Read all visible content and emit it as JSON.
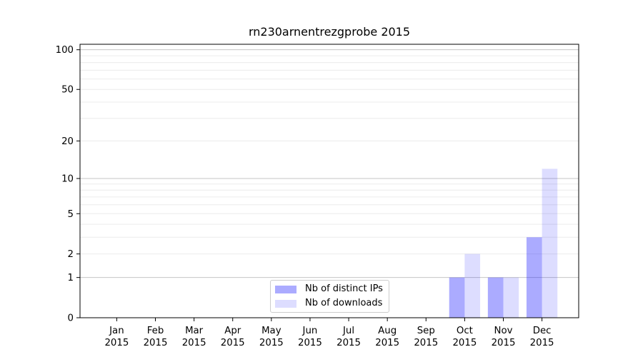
{
  "chart_data": {
    "type": "bar",
    "title": "rn230arnentrezgprobe 2015",
    "x_tick_year": "2015",
    "months": [
      "Jan",
      "Feb",
      "Mar",
      "Apr",
      "May",
      "Jun",
      "Jul",
      "Aug",
      "Sep",
      "Oct",
      "Nov",
      "Dec"
    ],
    "series": [
      {
        "name": "Nb of distinct IPs",
        "color": "#0000ff",
        "alpha": 0.33,
        "composited_hex": "#aaaaff",
        "values": [
          0,
          0,
          0,
          0,
          0,
          0,
          0,
          0,
          0,
          1,
          1,
          3
        ]
      },
      {
        "name": "Nb of downloads",
        "color": "#0000ff",
        "alpha": 0.135,
        "composited_hex": "#dcdcfa",
        "values": [
          0,
          0,
          0,
          0,
          0,
          0,
          0,
          0,
          0,
          2,
          1,
          12
        ]
      }
    ],
    "y_axis": {
      "scale": "log10(1+v)",
      "ticks": [
        0,
        1,
        2,
        5,
        10,
        20,
        50,
        100
      ],
      "limit": [
        0,
        110
      ],
      "major_gridlines": [
        1,
        10,
        100
      ],
      "minor_gridlines": [
        2,
        3,
        4,
        5,
        6,
        7,
        8,
        9,
        20,
        30,
        40,
        50,
        60,
        70,
        80,
        90
      ]
    },
    "legend": {
      "position": "bottom-center"
    },
    "grid": true
  },
  "colors": {
    "background": "#ffffff",
    "axis": "#000000",
    "text": "#000000",
    "major_grid": "#c6c6c6",
    "minor_grid": "#ececec",
    "legend_border": "#cccccc"
  }
}
